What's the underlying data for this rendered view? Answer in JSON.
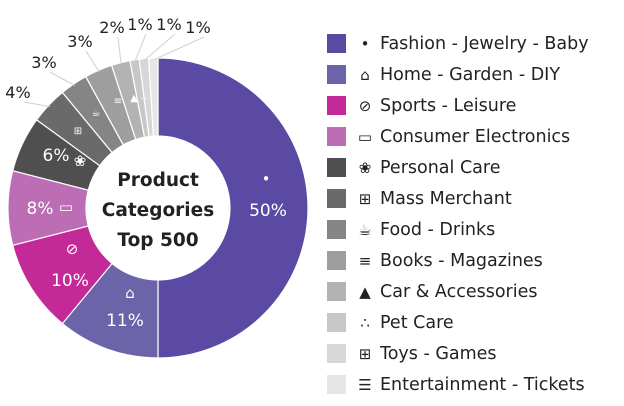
{
  "chart_data": {
    "type": "pie",
    "variant": "donut",
    "center_label": [
      "Product",
      "Categories",
      "Top 500"
    ],
    "legend_placement": "right",
    "series": [
      {
        "name": "Fashion - Jewelry - Baby",
        "value": 50,
        "label": "50%",
        "color": "#5b4aa3",
        "icon": "clothing-icon",
        "glyph": "•"
      },
      {
        "name": "Home - Garden - DIY",
        "value": 11,
        "label": "11%",
        "color": "#6b64a8",
        "icon": "lamp-icon",
        "glyph": "⌂"
      },
      {
        "name": "Sports - Leisure",
        "value": 10,
        "label": "10%",
        "color": "#c42a97",
        "icon": "tennis-racket-icon",
        "glyph": "⊘"
      },
      {
        "name": "Consumer Electronics",
        "value": 8,
        "label": "8%",
        "color": "#bc6db4",
        "icon": "laptop-icon",
        "glyph": "▭"
      },
      {
        "name": "Personal Care",
        "value": 6,
        "label": "6%",
        "color": "#4f4f4f",
        "icon": "hair-dryer-icon",
        "glyph": "❀"
      },
      {
        "name": "Mass Merchant",
        "value": 4,
        "label": "4%",
        "color": "#6a6a6a",
        "icon": "grid-icon",
        "glyph": "⊞"
      },
      {
        "name": "Food - Drinks",
        "value": 3,
        "label": "3%",
        "color": "#858585",
        "icon": "drink-icon",
        "glyph": "☕"
      },
      {
        "name": "Books - Magazines",
        "value": 3,
        "label": "3%",
        "color": "#9e9e9e",
        "icon": "books-icon",
        "glyph": "≡"
      },
      {
        "name": "Car & Accessories",
        "value": 2,
        "label": "2%",
        "color": "#b3b3b3",
        "icon": "car-icon",
        "glyph": "▲"
      },
      {
        "name": "Pet Care",
        "value": 1,
        "label": "1%",
        "color": "#c7c7c7",
        "icon": "paw-icon",
        "glyph": "∴"
      },
      {
        "name": "Toys - Games",
        "value": 1,
        "label": "1%",
        "color": "#d7d7d7",
        "icon": "gamepad-icon",
        "glyph": "⊞"
      },
      {
        "name": "Entertainment - Tickets",
        "value": 1,
        "label": "1%",
        "color": "#e6e6e6",
        "icon": "ticket-icon",
        "glyph": "☰"
      }
    ]
  }
}
